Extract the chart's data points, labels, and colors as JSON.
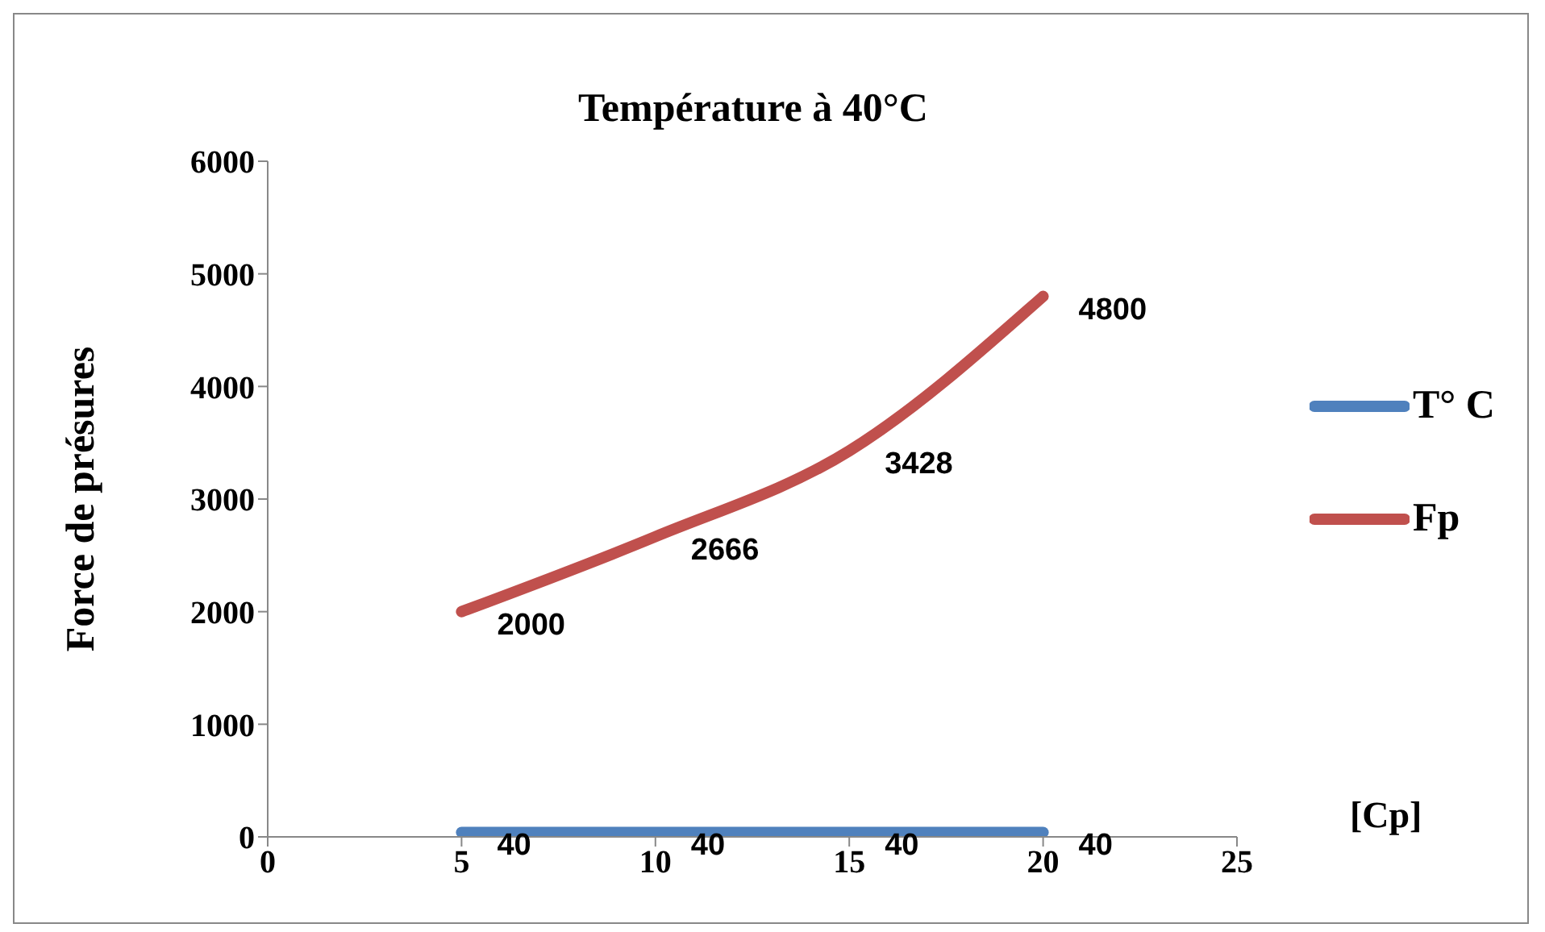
{
  "chart_data": {
    "type": "line",
    "title": "Température à 40°C",
    "xlabel": "[Cp]",
    "ylabel": "Force de présures",
    "x": [
      5,
      10,
      15,
      20
    ],
    "series": [
      {
        "name": "T° C",
        "color": "#4f81bd",
        "values": [
          40,
          40,
          40,
          40
        ]
      },
      {
        "name": "Fp",
        "color": "#c0504d",
        "values": [
          2000,
          2666,
          3428,
          4800
        ]
      }
    ],
    "xlim": [
      0,
      25
    ],
    "xticks": [
      0,
      5,
      10,
      15,
      20,
      25
    ],
    "ylim": [
      0,
      6000
    ],
    "yticks": [
      0,
      1000,
      2000,
      3000,
      4000,
      5000,
      6000
    ],
    "grid": false,
    "legend": "right",
    "marker": "none",
    "line_style": "solid",
    "data_labels": true
  }
}
